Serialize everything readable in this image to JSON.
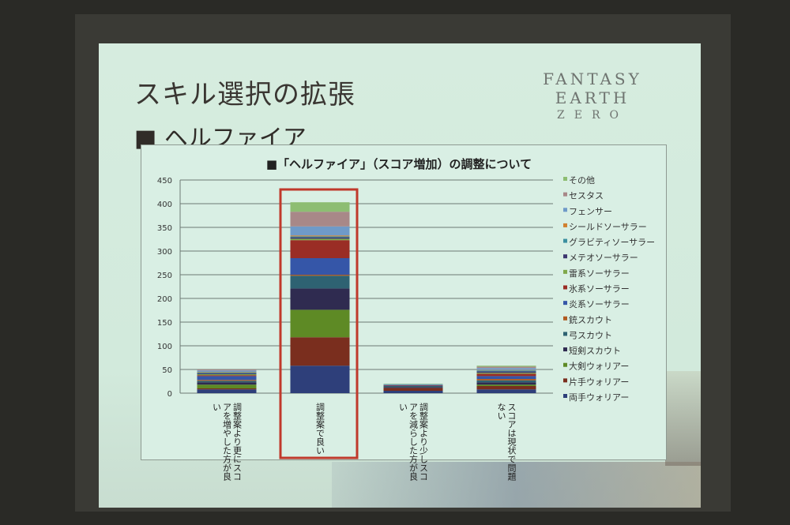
{
  "slide": {
    "title": "スキル選択の拡張",
    "logo_text": "FANTASY EARTH",
    "logo_sub": "ZERO",
    "section": "■ ヘルファイア"
  },
  "chart_data": {
    "type": "bar",
    "stacked": true,
    "title": "■「ヘルファイア」（スコア増加）の調整について",
    "categories": [
      "調整案より更にスコアを増やした方が良い",
      "調整案で良い",
      "調整案より少しスコアを減らした方が良い",
      "スコアは現状で問題ない"
    ],
    "highlighted_category": "調整案で良い",
    "highlight_color": "#c0392b",
    "ylim": [
      0,
      450
    ],
    "yticks": [
      0,
      50,
      100,
      150,
      200,
      250,
      300,
      350,
      400,
      450
    ],
    "grid": true,
    "legend_position": "right",
    "series": [
      {
        "name": "両手ウォリアー",
        "color": "#2e3f7a",
        "values": [
          8,
          58,
          5,
          8
        ]
      },
      {
        "name": "片手ウォリアー",
        "color": "#7a2e1e",
        "values": [
          2,
          60,
          6,
          7
        ]
      },
      {
        "name": "大剣ウォリアー",
        "color": "#5e8a25",
        "values": [
          8,
          58,
          0,
          3
        ]
      },
      {
        "name": "短剣スカウト",
        "color": "#2f2b50",
        "values": [
          5,
          45,
          2,
          5
        ]
      },
      {
        "name": "弓スカウト",
        "color": "#2e6272",
        "values": [
          3,
          27,
          2,
          4
        ]
      },
      {
        "name": "銃スカウト",
        "color": "#b05a20",
        "values": [
          2,
          2,
          0,
          3
        ]
      },
      {
        "name": "炎系ソーサラー",
        "color": "#3556a8",
        "values": [
          8,
          35,
          0,
          6
        ]
      },
      {
        "name": "氷系ソーサラー",
        "color": "#9a2d25",
        "values": [
          2,
          38,
          1,
          5
        ]
      },
      {
        "name": "雷系ソーサラー",
        "color": "#7fa84a",
        "values": [
          2,
          3,
          0,
          2
        ]
      },
      {
        "name": "メテオソーサラー",
        "color": "#3c3670",
        "values": [
          2,
          3,
          1,
          3
        ]
      },
      {
        "name": "グラビティソーサラー",
        "color": "#3b8fa0",
        "values": [
          2,
          2,
          0,
          2
        ]
      },
      {
        "name": "シールドソーサラー",
        "color": "#d08030",
        "values": [
          1,
          2,
          0,
          1
        ]
      },
      {
        "name": "フェンサー",
        "color": "#6f9ac8",
        "values": [
          3,
          19,
          2,
          4
        ]
      },
      {
        "name": "セスタス",
        "color": "#a88888",
        "values": [
          2,
          31,
          0,
          3
        ]
      },
      {
        "name": "その他",
        "color": "#8dbd72",
        "values": [
          0,
          20,
          1,
          2
        ]
      }
    ]
  }
}
